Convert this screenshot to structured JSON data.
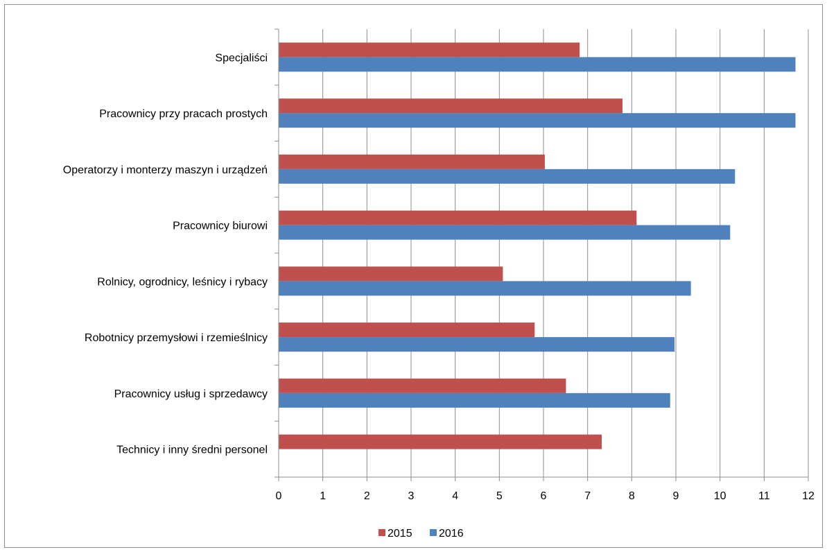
{
  "chart_data": {
    "type": "bar",
    "orientation": "horizontal",
    "categories": [
      "Specjaliści",
      "Pracownicy przy pracach prostych",
      "Operatorzy i monterzy maszyn i urządzeń",
      "Pracownicy biurowi",
      "Rolnicy, ogrodnicy, leśnicy i rybacy",
      "Robotnicy przemysłowi i rzemieślnicy",
      "Pracownicy usług i sprzedawcy",
      "Technicy i inny średni personel"
    ],
    "series": [
      {
        "name": "2015",
        "color": "#c0504d",
        "values": [
          6.82,
          7.79,
          6.03,
          8.11,
          5.08,
          5.8,
          6.51,
          7.32
        ]
      },
      {
        "name": "2016",
        "color": "#4f81bd",
        "values": [
          11.71,
          11.71,
          10.34,
          10.23,
          9.34,
          8.97,
          8.87,
          null
        ]
      }
    ],
    "xlim": [
      0,
      12
    ],
    "xticks": [
      "0",
      "1",
      "2",
      "3",
      "4",
      "5",
      "6",
      "7",
      "8",
      "9",
      "10",
      "11",
      "12"
    ],
    "grid": "vertical",
    "legend": "bottom"
  }
}
